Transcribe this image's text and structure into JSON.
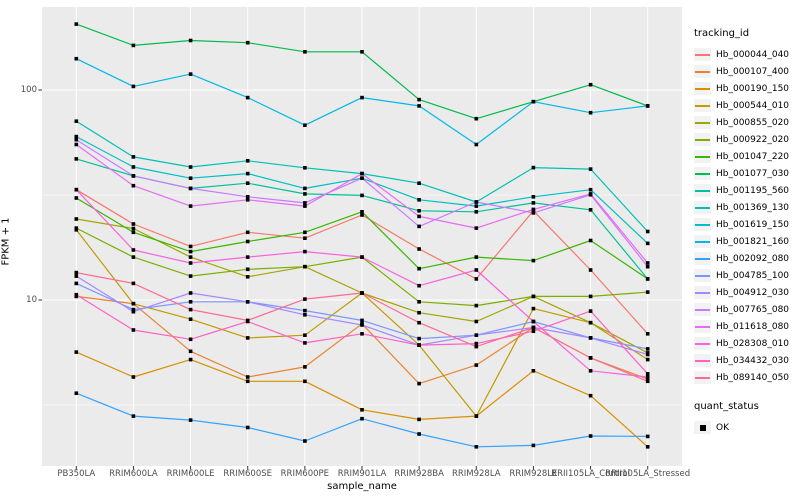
{
  "figure": {
    "panel_bg": "#ebebeb",
    "grid_color": "#ffffff",
    "axis_text_color": "#4d4d4d",
    "tick_color": "#333333"
  },
  "y_axis": {
    "title": "FPKM + 1",
    "tick_labels": [
      "100",
      "10"
    ],
    "tick_values": [
      100,
      10
    ],
    "minor_tick_values": [
      31.623,
      3.1623
    ]
  },
  "x_axis": {
    "title": "sample_name"
  },
  "legend": {
    "tracking_title": "tracking_id",
    "quant_title": "quant_status",
    "quant_items": [
      {
        "label": "OK",
        "shape": "filled-square",
        "color": "#000000"
      }
    ]
  },
  "chart_data": {
    "type": "line",
    "title": "",
    "xlabel": "sample_name",
    "ylabel": "FPKM + 1",
    "y_scale": "log10",
    "ylim": [
      1.6,
      250
    ],
    "y_major_gridlines": [
      100,
      10
    ],
    "y_minor_gridlines": [
      31.623,
      3.1623
    ],
    "grid": true,
    "legend_position": "right",
    "point_marker": {
      "shape": "square",
      "color": "#000000",
      "meaning": "quant_status OK"
    },
    "categories": [
      "PB350LA",
      "RRIM600LA",
      "RRIM600LE",
      "RRIM600SE",
      "RRIM600PE",
      "RRIM901LA",
      "RRIM928BA",
      "RRIM928LA",
      "RRIM928LE",
      "RRII105LA_Control",
      "RRII105LA_Stressed"
    ],
    "series": [
      {
        "name": "Hb_000044_040",
        "color": "#F8766D",
        "values": [
          33.5,
          23,
          18,
          21,
          19.7,
          25.4,
          17.5,
          12.6,
          26.6,
          13.9,
          6.9
        ]
      },
      {
        "name": "Hb_000107_400",
        "color": "#EA8331",
        "values": [
          10.4,
          9.6,
          5.7,
          4.3,
          4.8,
          7.7,
          4.0,
          4.9,
          7.4,
          5.3,
          4.2
        ]
      },
      {
        "name": "Hb_000190_150",
        "color": "#D89000",
        "values": [
          5.65,
          4.3,
          5.2,
          4.1,
          4.1,
          3.0,
          2.7,
          2.8,
          4.6,
          3.5,
          2.0
        ]
      },
      {
        "name": "Hb_000544_010",
        "color": "#C09B00",
        "values": [
          21.6,
          9.6,
          8.1,
          6.6,
          6.8,
          10.8,
          6.1,
          2.8,
          9.1,
          7.8,
          5.2
        ]
      },
      {
        "name": "Hb_000855_020",
        "color": "#A3A500",
        "values": [
          24.3,
          21.9,
          16,
          12.9,
          14.4,
          10.8,
          8.7,
          7.9,
          10.4,
          7.8,
          5.6
        ]
      },
      {
        "name": "Hb_000922_020",
        "color": "#7CAE00",
        "values": [
          22,
          16,
          13,
          14,
          14.4,
          16,
          9.8,
          9.4,
          10.4,
          10.4,
          10.9
        ]
      },
      {
        "name": "Hb_001047_220",
        "color": "#39B600",
        "values": [
          30.6,
          21,
          17,
          19,
          21,
          26.3,
          14.1,
          16,
          15.4,
          19.2,
          12.6
        ]
      },
      {
        "name": "Hb_001077_030",
        "color": "#00BB4E",
        "values": [
          206,
          163,
          172,
          168,
          152,
          152,
          90,
          73,
          88,
          106,
          84
        ]
      },
      {
        "name": "Hb_001195_560",
        "color": "#00C19A",
        "values": [
          47,
          39,
          34,
          36,
          32,
          31.5,
          26.6,
          26.3,
          29,
          26.9,
          12.6
        ]
      },
      {
        "name": "Hb_001369_130",
        "color": "#00C0B4",
        "values": [
          71,
          48,
          43,
          46,
          42.6,
          40,
          36,
          29.3,
          42.7,
          42,
          21.2
        ]
      },
      {
        "name": "Hb_001619_150",
        "color": "#00BFC4",
        "values": [
          60,
          43,
          38,
          40,
          34,
          38,
          30,
          28,
          31,
          33.5,
          18.6
        ]
      },
      {
        "name": "Hb_001821_160",
        "color": "#00B8E5",
        "values": [
          141,
          104,
          119,
          92,
          68,
          92,
          84,
          55,
          88,
          78,
          84
        ]
      },
      {
        "name": "Hb_002092_080",
        "color": "#35A2FF",
        "values": [
          3.6,
          2.8,
          2.68,
          2.47,
          2.13,
          2.72,
          2.3,
          2.0,
          2.03,
          2.25,
          2.24
        ]
      },
      {
        "name": "Hb_004785_100",
        "color": "#7B96FF",
        "values": [
          12,
          9.0,
          9.8,
          9.8,
          8.9,
          8.0,
          6.55,
          6.8,
          7.9,
          6.6,
          5.85
        ]
      },
      {
        "name": "Hb_004912_030",
        "color": "#A588FF",
        "values": [
          13,
          8.8,
          10.8,
          9.8,
          8.5,
          7.6,
          6.1,
          6.8,
          7.4,
          6.6,
          5.5
        ]
      },
      {
        "name": "Hb_007765_080",
        "color": "#C77CFF",
        "values": [
          58,
          39,
          34,
          31,
          29,
          38,
          22.4,
          29.3,
          26,
          31.7,
          14.4
        ]
      },
      {
        "name": "Hb_011618_080",
        "color": "#E76BF3",
        "values": [
          55,
          35,
          28,
          30,
          28,
          40,
          25,
          22,
          27,
          32,
          15
        ]
      },
      {
        "name": "Hb_028308_010",
        "color": "#F763E0",
        "values": [
          33.5,
          17.3,
          15,
          16,
          17,
          16,
          11.7,
          13.9,
          7.9,
          4.6,
          4.3
        ]
      },
      {
        "name": "Hb_034432_030",
        "color": "#FF61C7",
        "values": [
          10.6,
          7.2,
          6.5,
          7.9,
          6.25,
          6.9,
          6.1,
          6.2,
          7.1,
          8.85,
          4.45
        ]
      },
      {
        "name": "Hb_089140_050",
        "color": "#FF6B94",
        "values": [
          13.5,
          12,
          9.0,
          8.0,
          10.1,
          10.8,
          7.8,
          6.0,
          7.4,
          5.3,
          4.1
        ]
      }
    ]
  }
}
